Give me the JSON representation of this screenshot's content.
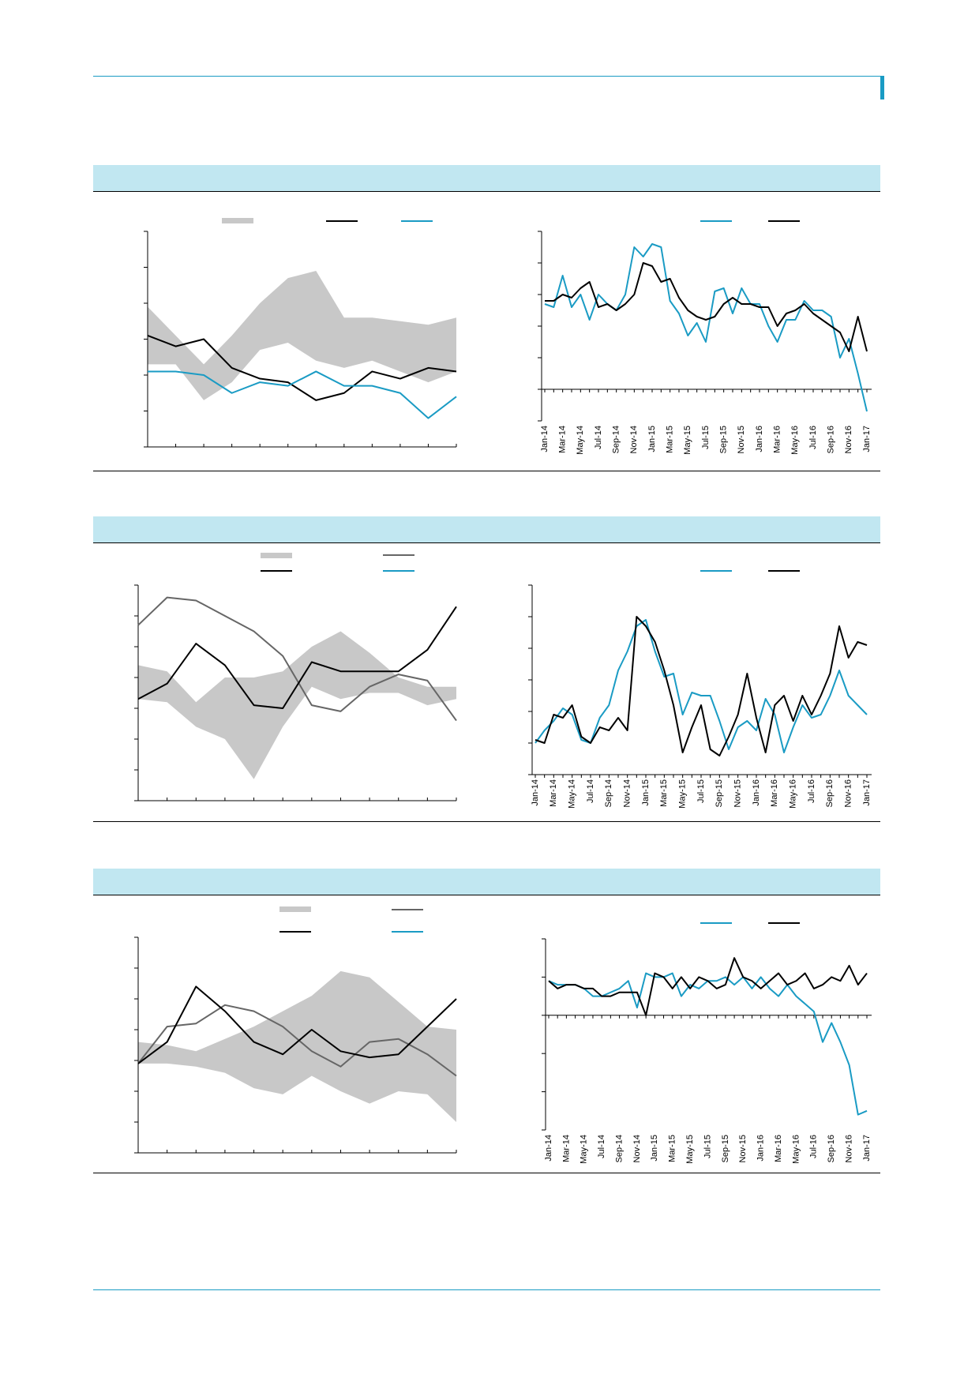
{
  "chart_data": [
    {
      "type": "line",
      "categories": [
        null,
        null,
        null,
        null,
        null,
        null,
        null,
        null,
        null,
        null,
        null,
        null
      ],
      "ylim": [
        0,
        6
      ],
      "yticks": [
        0,
        1,
        2,
        3,
        4,
        5,
        6
      ],
      "band": {
        "color": "#c8c8c8",
        "high": [
          3.9,
          3.1,
          2.3,
          3.1,
          4.0,
          4.7,
          4.9,
          3.6,
          3.6,
          3.5,
          3.4,
          3.6
        ],
        "low": [
          2.3,
          2.3,
          1.3,
          1.8,
          2.7,
          2.9,
          2.4,
          2.2,
          2.4,
          2.1,
          1.8,
          2.1
        ]
      },
      "series": [
        {
          "color": "#000000",
          "values": [
            3.1,
            2.8,
            3.0,
            2.2,
            1.9,
            1.8,
            1.3,
            1.5,
            2.1,
            1.9,
            2.2,
            2.1
          ]
        },
        {
          "color": "#1a9bc4",
          "values": [
            2.1,
            2.1,
            2.0,
            1.5,
            1.8,
            1.7,
            2.1,
            1.7,
            1.7,
            1.5,
            0.8,
            1.4
          ]
        }
      ]
    },
    {
      "type": "line",
      "categories": [
        "Jan-14",
        null,
        "Mar-14",
        null,
        "May-14",
        null,
        "Jul-14",
        null,
        "Sep-14",
        null,
        "Nov-14",
        null,
        "Jan-15",
        null,
        "Mar-15",
        null,
        "May-15",
        null,
        "Jul-15",
        null,
        "Sep-15",
        null,
        "Nov-15",
        null,
        "Jan-16",
        null,
        "Mar-16",
        null,
        "May-16",
        null,
        "Jul-16",
        null,
        "Sep-16",
        null,
        "Nov-16",
        null,
        "Jan-17"
      ],
      "ylim": [
        -1,
        5
      ],
      "yticks": [
        -1,
        0,
        1,
        2,
        3,
        4,
        5
      ],
      "series": [
        {
          "color": "#1a9bc4",
          "values": [
            2.7,
            2.6,
            3.6,
            2.6,
            3.0,
            2.2,
            3.0,
            2.7,
            2.5,
            3.0,
            4.5,
            4.2,
            4.6,
            4.5,
            2.8,
            2.4,
            1.7,
            2.1,
            1.5,
            3.1,
            3.2,
            2.4,
            3.2,
            2.7,
            2.7,
            2.0,
            1.5,
            2.2,
            2.2,
            2.8,
            2.5,
            2.5,
            2.3,
            1.0,
            1.6,
            0.5,
            -0.7
          ]
        },
        {
          "color": "#000000",
          "values": [
            2.8,
            2.8,
            3.0,
            2.9,
            3.2,
            3.4,
            2.6,
            2.7,
            2.5,
            2.7,
            3.0,
            4.0,
            3.9,
            3.4,
            3.5,
            2.9,
            2.5,
            2.3,
            2.2,
            2.3,
            2.7,
            2.9,
            2.7,
            2.7,
            2.6,
            2.6,
            2.0,
            2.4,
            2.5,
            2.7,
            2.4,
            2.2,
            2.0,
            1.8,
            1.2,
            2.3,
            1.2
          ]
        }
      ]
    },
    {
      "type": "line",
      "categories": [
        null,
        null,
        null,
        null,
        null,
        null,
        null,
        null,
        null,
        null,
        null,
        null
      ],
      "ylim": [
        0,
        7
      ],
      "yticks": [
        0,
        1,
        2,
        3,
        4,
        5,
        6,
        7
      ],
      "band": {
        "color": "#c8c8c8",
        "high": [
          4.4,
          4.2,
          3.2,
          4.0,
          4.0,
          4.2,
          5.0,
          5.5,
          4.8,
          4.0,
          3.7,
          3.7
        ],
        "low": [
          3.3,
          3.2,
          2.4,
          2.0,
          0.7,
          2.4,
          3.7,
          3.3,
          3.5,
          3.5,
          3.1,
          3.3
        ]
      },
      "series": [
        {
          "color": "#666666",
          "values": [
            5.7,
            6.6,
            6.5,
            6.0,
            5.5,
            4.7,
            3.1,
            2.9,
            3.7,
            4.1,
            3.9,
            2.6
          ]
        },
        {
          "color": "#000000",
          "values": [
            3.3,
            3.8,
            5.1,
            4.4,
            3.1,
            3.0,
            4.5,
            4.2,
            4.2,
            4.2,
            4.9,
            6.3
          ]
        }
      ]
    },
    {
      "type": "line",
      "categories": [
        "Jan-14",
        null,
        "Mar-14",
        null,
        "May-14",
        null,
        "Jul-14",
        null,
        "Sep-14",
        null,
        "Nov-14",
        null,
        "Jan-15",
        null,
        "Mar-15",
        null,
        "May-15",
        null,
        "Jul-15",
        null,
        "Sep-15",
        null,
        "Nov-15",
        null,
        "Jan-16",
        null,
        "Mar-16",
        null,
        "May-16",
        null,
        "Jul-16",
        null,
        "Sep-16",
        null,
        "Nov-16",
        null,
        "Jan-17"
      ],
      "ylim": [
        0,
        6
      ],
      "yticks": [
        0,
        1,
        2,
        3,
        4,
        5,
        6
      ],
      "series": [
        {
          "color": "#1a9bc4",
          "values": [
            1.0,
            1.4,
            1.7,
            2.1,
            1.9,
            1.1,
            1.0,
            1.8,
            2.2,
            3.3,
            3.9,
            4.7,
            4.9,
            3.9,
            3.1,
            3.2,
            1.9,
            2.6,
            2.5,
            2.5,
            1.7,
            0.8,
            1.5,
            1.7,
            1.4,
            2.4,
            1.9,
            0.7,
            1.5,
            2.2,
            1.8,
            1.9,
            2.5,
            3.3,
            2.5,
            2.2,
            1.9
          ]
        },
        {
          "color": "#000000",
          "values": [
            1.1,
            1.0,
            1.9,
            1.8,
            2.2,
            1.2,
            1.0,
            1.5,
            1.4,
            1.8,
            1.4,
            5.0,
            4.7,
            4.2,
            3.3,
            2.2,
            0.7,
            1.5,
            2.2,
            0.8,
            0.6,
            1.2,
            1.9,
            3.2,
            1.8,
            0.7,
            2.2,
            2.5,
            1.7,
            2.5,
            1.9,
            2.5,
            3.2,
            4.7,
            3.7,
            4.2,
            4.1
          ]
        }
      ]
    },
    {
      "type": "line",
      "categories": [
        null,
        null,
        null,
        null,
        null,
        null,
        null,
        null,
        null,
        null,
        null,
        null
      ],
      "ylim": [
        0,
        7
      ],
      "yticks": [
        0,
        1,
        2,
        3,
        4,
        5,
        6,
        7
      ],
      "band": {
        "color": "#c8c8c8",
        "high": [
          3.6,
          3.5,
          3.3,
          3.7,
          4.1,
          4.6,
          5.1,
          5.9,
          5.7,
          4.9,
          4.1,
          4.0
        ],
        "low": [
          2.9,
          2.9,
          2.8,
          2.6,
          2.1,
          1.9,
          2.5,
          2.0,
          1.6,
          2.0,
          1.9,
          1.0
        ]
      },
      "series": [
        {
          "color": "#666666",
          "values": [
            2.9,
            4.1,
            4.2,
            4.8,
            4.6,
            4.1,
            3.3,
            2.8,
            3.6,
            3.7,
            3.2,
            2.5
          ]
        },
        {
          "color": "#000000",
          "values": [
            2.9,
            3.6,
            5.4,
            4.6,
            3.6,
            3.2,
            4.0,
            3.3,
            3.1,
            3.2,
            4.1,
            5.0
          ]
        }
      ]
    },
    {
      "type": "line",
      "categories": [
        "Jan-14",
        null,
        "Mar-14",
        null,
        "May-14",
        null,
        "Jul-14",
        null,
        "Sep-14",
        null,
        "Nov-14",
        null,
        "Jan-15",
        null,
        "Mar-15",
        null,
        "May-15",
        null,
        "Jul-15",
        null,
        "Sep-15",
        null,
        "Nov-15",
        null,
        "Jan-16",
        null,
        "Mar-16",
        null,
        "May-16",
        null,
        "Jul-16",
        null,
        "Sep-16",
        null,
        "Nov-16",
        null,
        "Jan-17"
      ],
      "ylim": [
        -3,
        2
      ],
      "yticks": [
        -3,
        -2,
        -1,
        0,
        1,
        2
      ],
      "series": [
        {
          "color": "#1a9bc4",
          "values": [
            0.9,
            0.8,
            0.8,
            0.8,
            0.7,
            0.5,
            0.5,
            0.6,
            0.7,
            0.9,
            0.2,
            1.1,
            1.0,
            1.0,
            1.1,
            0.5,
            0.8,
            0.7,
            0.9,
            0.9,
            1.0,
            0.8,
            1.0,
            0.7,
            1.0,
            0.7,
            0.5,
            0.8,
            0.5,
            0.3,
            0.1,
            -0.7,
            -0.2,
            -0.7,
            -1.3,
            -2.6,
            -2.5
          ]
        },
        {
          "color": "#000000",
          "values": [
            0.9,
            0.7,
            0.8,
            0.8,
            0.7,
            0.7,
            0.5,
            0.5,
            0.6,
            0.6,
            0.6,
            0.0,
            1.1,
            1.0,
            0.7,
            1.0,
            0.7,
            1.0,
            0.9,
            0.7,
            0.8,
            1.5,
            1.0,
            0.9,
            0.7,
            0.9,
            1.1,
            0.8,
            0.9,
            1.1,
            0.7,
            0.8,
            1.0,
            0.9,
            1.3,
            0.8,
            1.1
          ]
        }
      ]
    }
  ]
}
